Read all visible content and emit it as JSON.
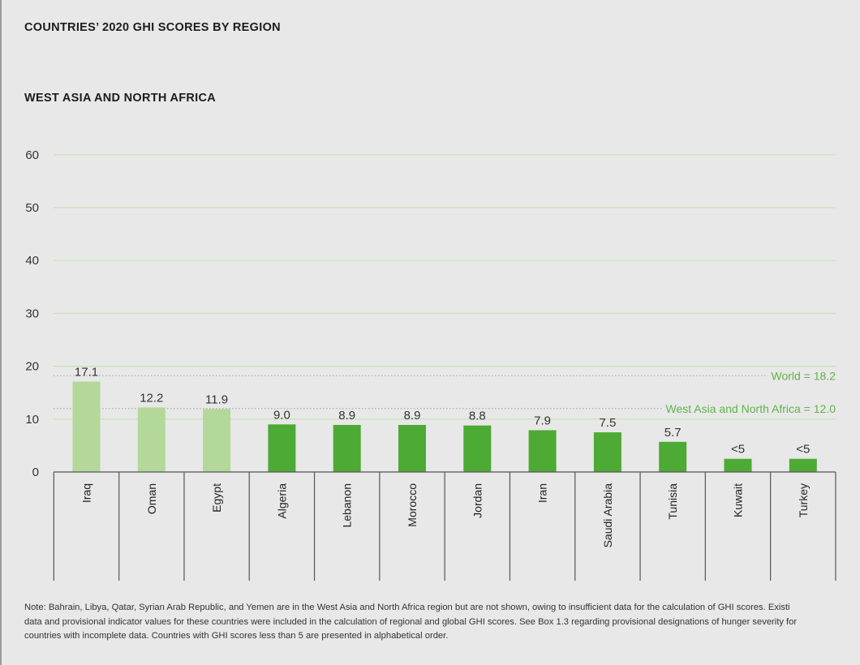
{
  "title": "COUNTRIES’ 2020 GHI SCORES BY REGION",
  "subtitle": "WEST ASIA AND NORTH AFRICA",
  "colors": {
    "bar_light": "#b3d899",
    "bar_dark": "#4daa34",
    "grid": "#c6e2b4",
    "reference_text": "#5fb34a",
    "axis": "#555555"
  },
  "chart_data": {
    "type": "bar",
    "title": "",
    "xlabel": "",
    "ylabel": "",
    "ylim": [
      0,
      60
    ],
    "yticks": [
      "0",
      "10",
      "20",
      "30",
      "40",
      "50",
      "60"
    ],
    "grid": true,
    "categories": [
      "Iraq",
      "Oman",
      "Egypt",
      "Algeria",
      "Lebanon",
      "Morocco",
      "Jordan",
      "Iran",
      "Saudi Arabia",
      "Tunisia",
      "Kuwait",
      "Turkey"
    ],
    "values": [
      17.1,
      12.2,
      11.9,
      9.0,
      8.9,
      8.9,
      8.8,
      7.9,
      7.5,
      5.7,
      2.5,
      2.5
    ],
    "value_labels": [
      "17.1",
      "12.2",
      "11.9",
      "9.0",
      "8.9",
      "8.9",
      "8.8",
      "7.9",
      "7.5",
      "5.7",
      "<5",
      "<5"
    ],
    "bar_shade": [
      "light",
      "light",
      "light",
      "dark",
      "dark",
      "dark",
      "dark",
      "dark",
      "dark",
      "dark",
      "dark",
      "dark"
    ],
    "reference_lines": [
      {
        "label": "World = 18.2",
        "value": 18.2
      },
      {
        "label": "West Asia and North Africa = 12.0",
        "value": 12.0
      }
    ]
  },
  "note": [
    "Note: Bahrain, Libya, Qatar, Syrian Arab Republic, and Yemen are in the West Asia and North Africa region but are not shown, owing to insufficient data for the calculation of GHI scores. Existi",
    "data and provisional indicator values for these countries were included in the calculation of regional and global GHI scores. See Box 1.3 regarding provisional designations of hunger severity for",
    "countries with incomplete data. Countries with GHI scores less than 5 are presented in alphabetical order."
  ]
}
